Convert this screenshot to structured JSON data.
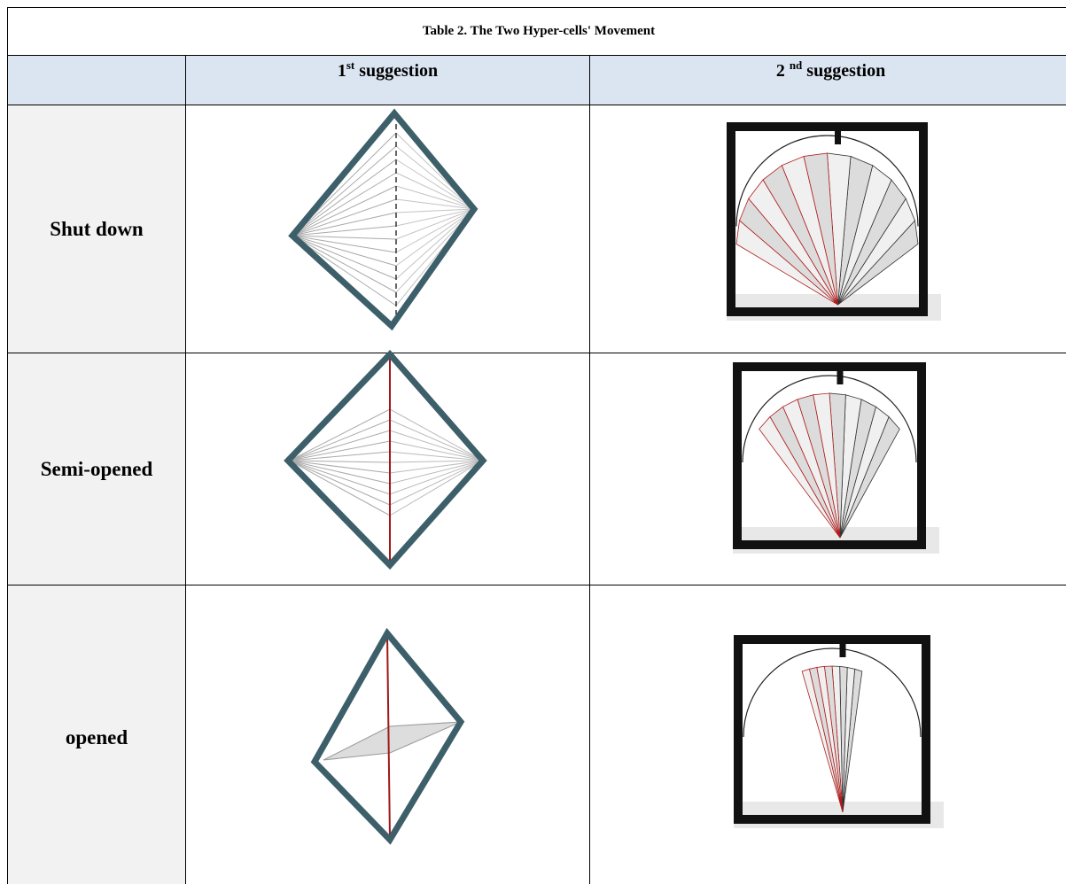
{
  "table": {
    "title": "Table 2. The Two Hyper-cells' Movement",
    "columns": [
      {
        "number": "1",
        "superscript": "st",
        "label": "suggestion"
      },
      {
        "number": "2",
        "superscript": "nd",
        "label": "suggestion"
      }
    ],
    "rows": [
      {
        "label": "Shut down"
      },
      {
        "label": "Semi-opened"
      },
      {
        "label": "opened"
      }
    ]
  }
}
